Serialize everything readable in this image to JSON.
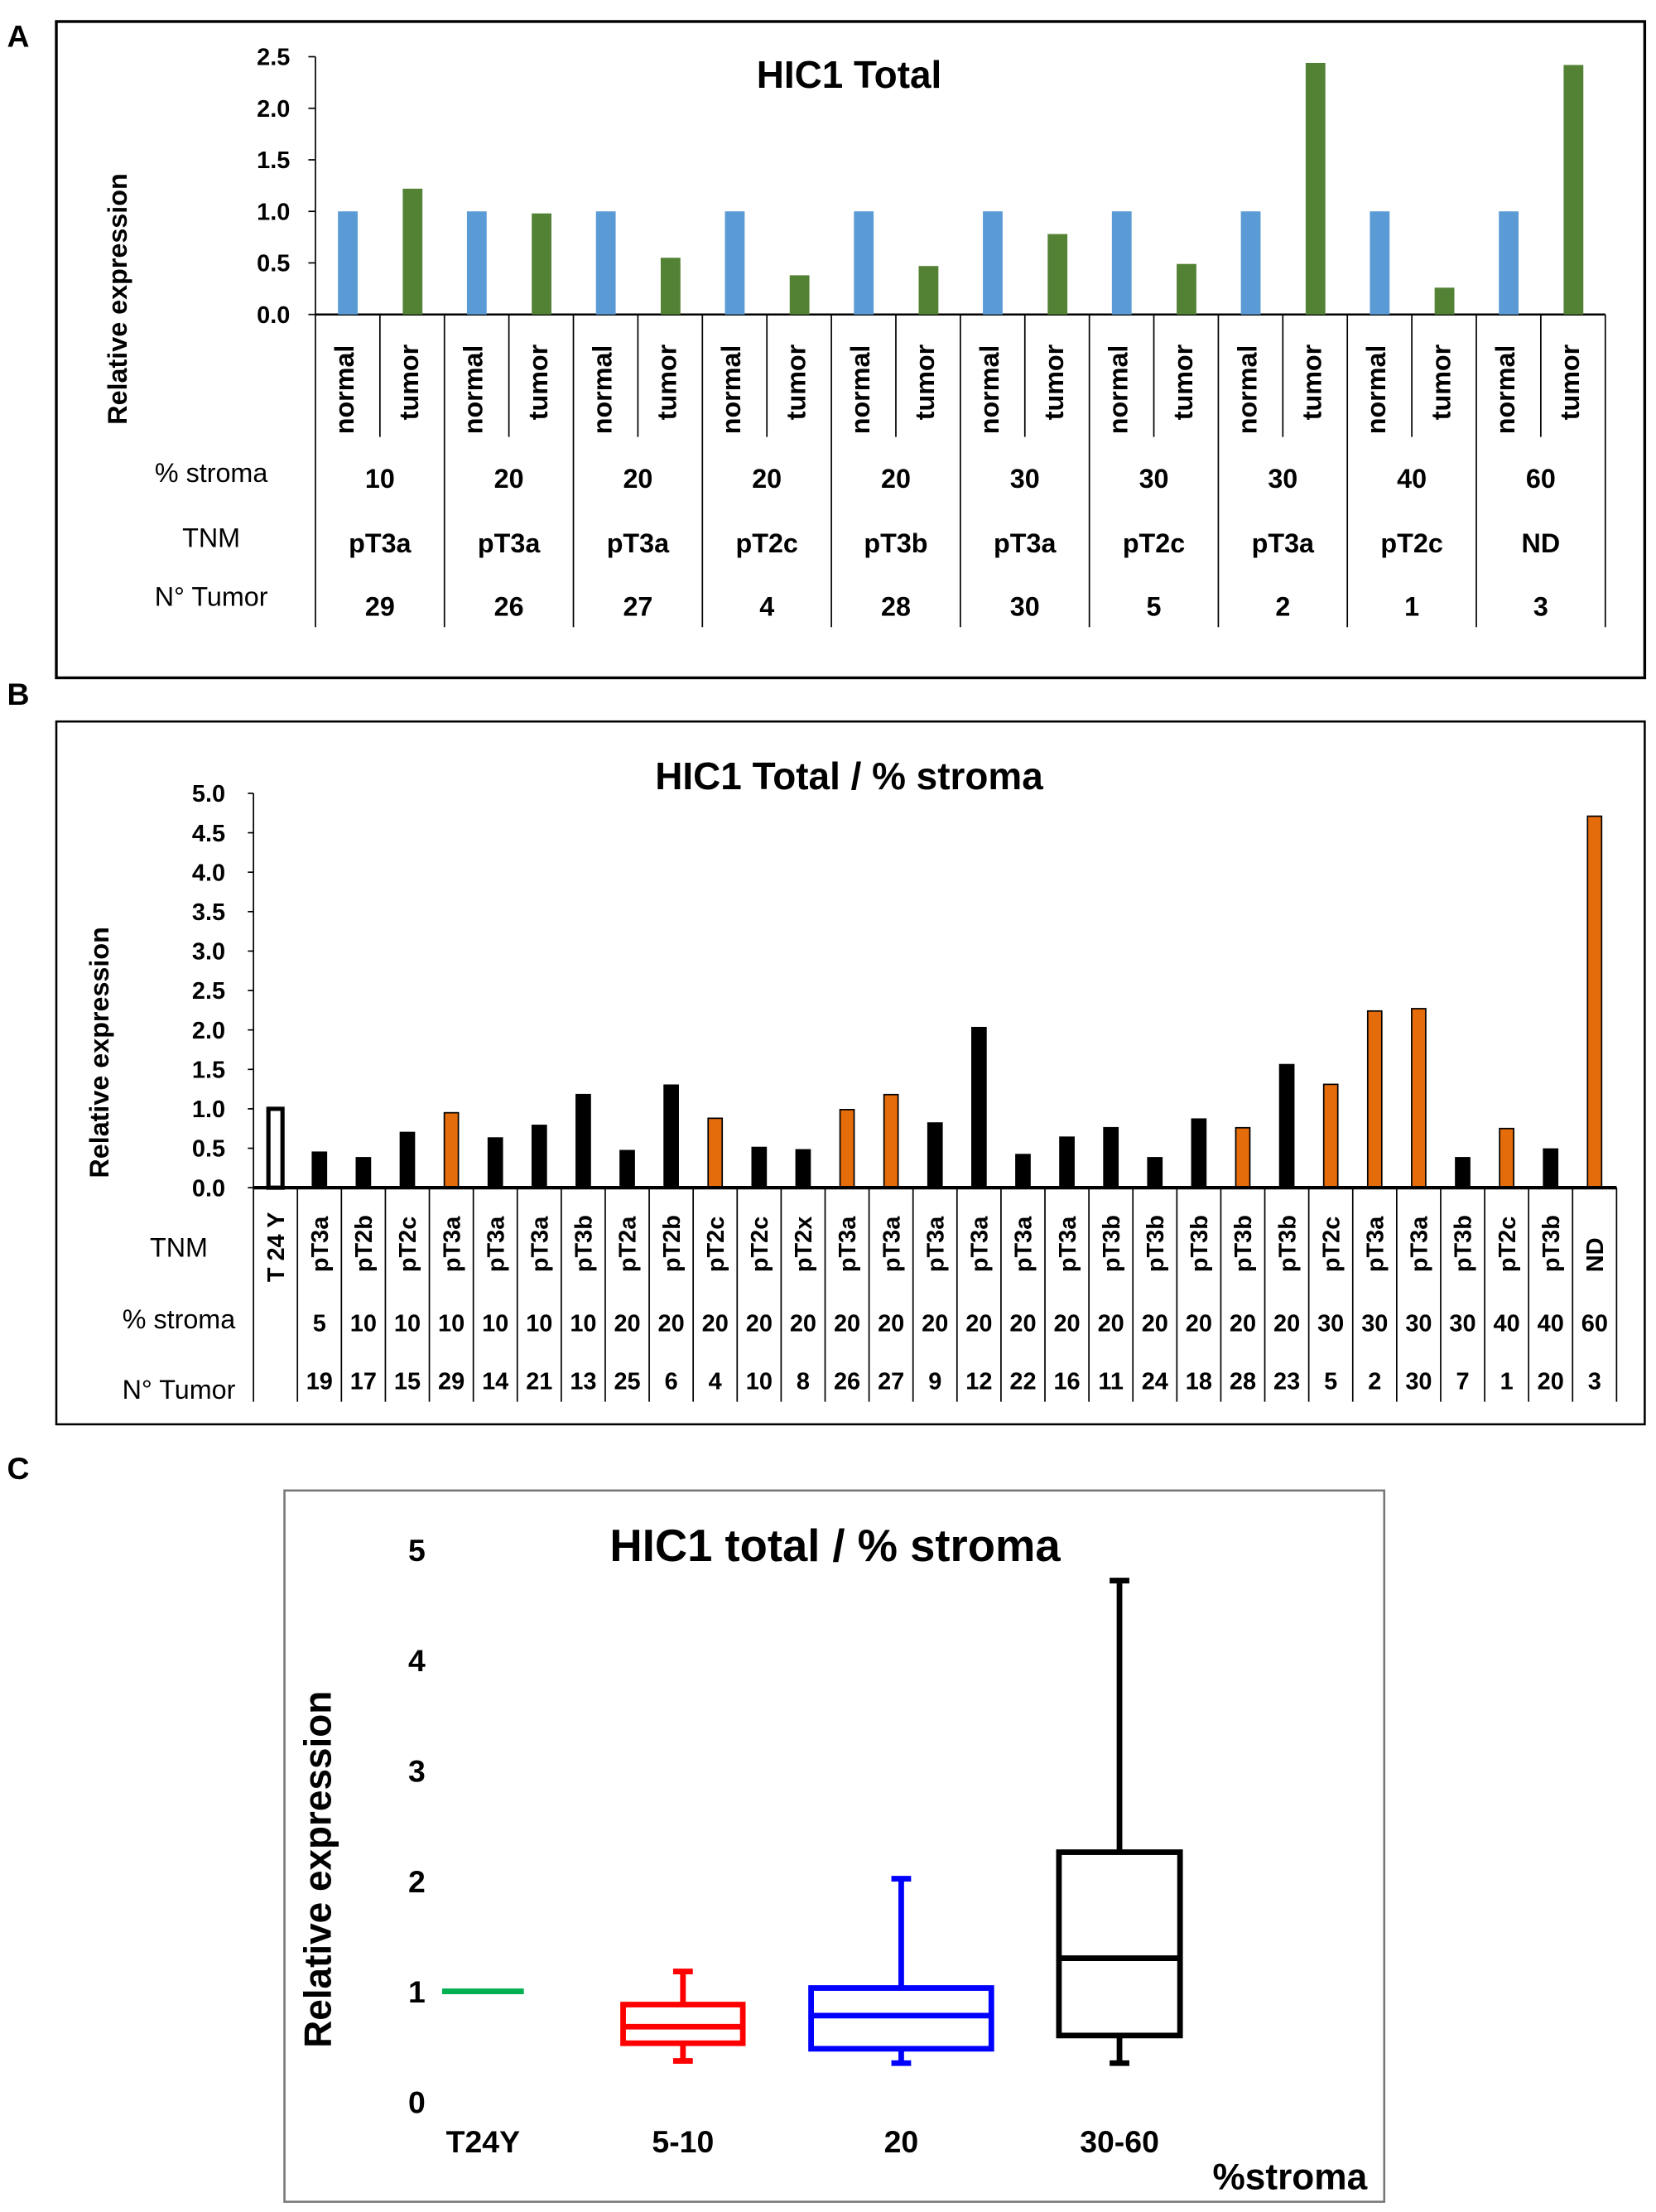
{
  "panel_labels": [
    "A",
    "B",
    "C"
  ],
  "colors": {
    "normal": "#5b9bd5",
    "tumor_A": "#548235",
    "black": "#000000",
    "orange": "#e46c0a",
    "t24y": "#00b050",
    "box_5_10": "#ff0000",
    "box_20": "#0000ff",
    "box_30_60": "#000000"
  },
  "chart_data": [
    {
      "type": "bar",
      "title": "HIC1 Total",
      "ylabel": "Relative expression",
      "ylim": [
        0,
        2.5
      ],
      "yticks": [
        "0.0",
        "0.5",
        "1.0",
        "1.5",
        "2.0",
        "2.5"
      ],
      "subcategories": [
        "normal",
        "tumor"
      ],
      "row_labels": {
        "stroma": "% stroma",
        "tnm": "TNM",
        "tumor": "N° Tumor"
      },
      "stroma": [
        "10",
        "20",
        "20",
        "20",
        "20",
        "30",
        "30",
        "30",
        "40",
        "60"
      ],
      "tnm": [
        "pT3a",
        "pT3a",
        "pT3a",
        "pT2c",
        "pT3b",
        "pT3a",
        "pT2c",
        "pT3a",
        "pT2c",
        "ND"
      ],
      "tumor_no": [
        "29",
        "26",
        "27",
        "4",
        "28",
        "30",
        "5",
        "2",
        "1",
        "3"
      ],
      "series": [
        {
          "key": "normal",
          "values": [
            1,
            1,
            1,
            1,
            1,
            1,
            1,
            1,
            1,
            1
          ]
        },
        {
          "key": "tumor",
          "values": [
            1.22,
            0.98,
            0.55,
            0.38,
            0.47,
            0.78,
            0.49,
            2.44,
            0.26,
            2.42
          ]
        }
      ]
    },
    {
      "type": "bar",
      "title": "HIC1 Total / % stroma",
      "ylabel": "Relative expression",
      "ylim": [
        0,
        5
      ],
      "yticks": [
        "0.0",
        "0.5",
        "1.0",
        "1.5",
        "2.0",
        "2.5",
        "3.0",
        "3.5",
        "4.0",
        "4.5",
        "5.0"
      ],
      "row_labels": {
        "tnm": "TNM",
        "stroma": "% stroma",
        "tumor": "N° Tumor"
      },
      "tnm": [
        "T 24 Y",
        "pT3a",
        "pT2b",
        "pT2c",
        "pT3a",
        "pT3a",
        "pT3a",
        "pT3b",
        "pT2a",
        "pT2b",
        "pT2c",
        "pT2c",
        "pT2x",
        "pT3a",
        "pT3a",
        "pT3a",
        "pT3a",
        "pT3a",
        "pT3a",
        "pT3b",
        "pT3b",
        "pT3b",
        "pT3b",
        "pT3b",
        "pT2c",
        "pT3a",
        "pT3a",
        "pT3b",
        "pT2c",
        "pT3b",
        "ND"
      ],
      "stroma": [
        "",
        "5",
        "10",
        "10",
        "10",
        "10",
        "10",
        "10",
        "20",
        "20",
        "20",
        "20",
        "20",
        "20",
        "20",
        "20",
        "20",
        "20",
        "20",
        "20",
        "20",
        "20",
        "20",
        "20",
        "30",
        "30",
        "30",
        "30",
        "40",
        "40",
        "60"
      ],
      "tumor_no": [
        "",
        "19",
        "17",
        "15",
        "29",
        "14",
        "21",
        "13",
        "25",
        "6",
        "4",
        "10",
        "8",
        "26",
        "27",
        "9",
        "12",
        "22",
        "16",
        "11",
        "24",
        "18",
        "28",
        "23",
        "5",
        "2",
        "30",
        "7",
        "1",
        "20",
        "3"
      ],
      "values": [
        1.0,
        0.45,
        0.38,
        0.7,
        0.95,
        0.63,
        0.79,
        1.18,
        0.47,
        1.3,
        0.88,
        0.51,
        0.48,
        0.99,
        1.18,
        0.82,
        2.03,
        0.42,
        0.64,
        0.76,
        0.38,
        0.87,
        0.76,
        1.56,
        1.31,
        2.24,
        2.27,
        0.38,
        0.75,
        0.49,
        4.71
      ],
      "bar_colors": [
        "hollow",
        "black",
        "black",
        "black",
        "orange",
        "black",
        "black",
        "black",
        "black",
        "black",
        "orange",
        "black",
        "black",
        "orange",
        "orange",
        "black",
        "black",
        "black",
        "black",
        "black",
        "black",
        "black",
        "orange",
        "black",
        "orange",
        "orange",
        "orange",
        "black",
        "orange",
        "black",
        "orange"
      ]
    },
    {
      "type": "boxplot",
      "title": "HIC1 total / % stroma",
      "ylabel": "Relative expression",
      "xlabel": "%stroma",
      "ylim": [
        0,
        5
      ],
      "yticks": [
        "0",
        "1",
        "2",
        "3",
        "4",
        "5"
      ],
      "categories": [
        "T24Y",
        "5-10",
        "20",
        "30-60"
      ],
      "boxes": [
        {
          "category": "T24Y",
          "color": "t24y",
          "min": 1.0,
          "q1": 1.0,
          "median": 1.0,
          "q3": 1.0,
          "max": 1.0
        },
        {
          "category": "5-10",
          "color": "box_5_10",
          "min": 0.37,
          "q1": 0.53,
          "median": 0.68,
          "q3": 0.88,
          "max": 1.18
        },
        {
          "category": "20",
          "color": "box_20",
          "min": 0.35,
          "q1": 0.48,
          "median": 0.78,
          "q3": 1.03,
          "max": 2.02
        },
        {
          "category": "30-60",
          "color": "box_30_60",
          "min": 0.35,
          "q1": 0.6,
          "median": 1.3,
          "q3": 2.26,
          "max": 4.72
        }
      ]
    }
  ]
}
